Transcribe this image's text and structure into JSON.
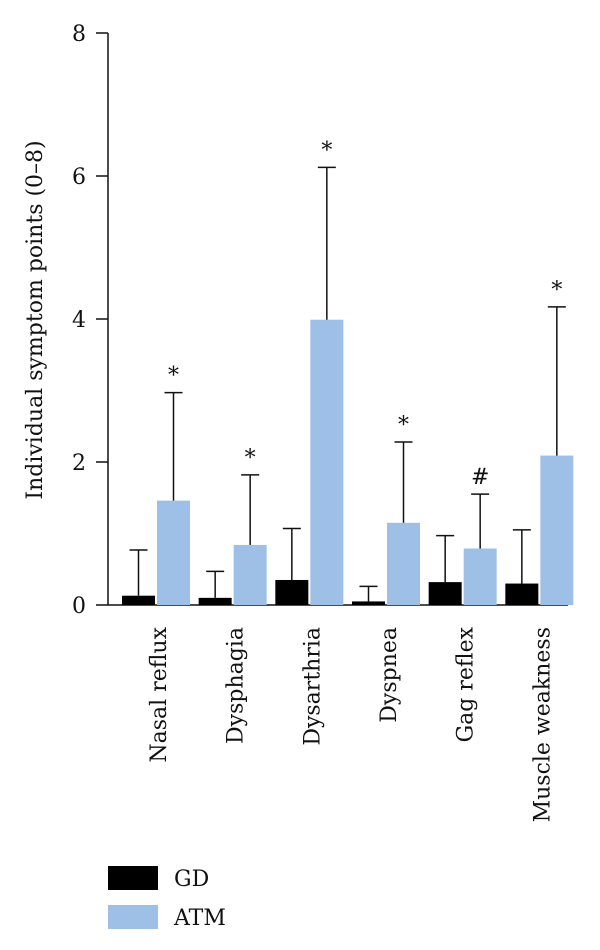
{
  "chart_data": {
    "type": "bar",
    "ylabel": "Individual symptom points (0–8)",
    "ylim": [
      0,
      8
    ],
    "yticks": [
      "0",
      "2",
      "4",
      "6",
      "8"
    ],
    "categories": [
      "Nasal reflux",
      "Dysphagia",
      "Dysarthria",
      "Dyspnea",
      "Gag reflex",
      "Muscle weakness"
    ],
    "series": [
      {
        "name": "GD",
        "color": "#000000",
        "values": [
          0.13,
          0.1,
          0.35,
          0.05,
          0.32,
          0.3
        ],
        "error_upper": [
          0.77,
          0.47,
          1.07,
          0.26,
          0.97,
          1.05
        ]
      },
      {
        "name": "ATM",
        "color": "#9ec0e6",
        "values": [
          1.46,
          0.84,
          3.99,
          1.15,
          0.79,
          2.09
        ],
        "error_upper": [
          2.97,
          1.82,
          6.12,
          2.28,
          1.55,
          4.17
        ],
        "annotations": [
          "*",
          "*",
          "*",
          "*",
          "#",
          "*"
        ]
      }
    ],
    "legend": {
      "placement": "bottom-left"
    },
    "grid": false
  }
}
